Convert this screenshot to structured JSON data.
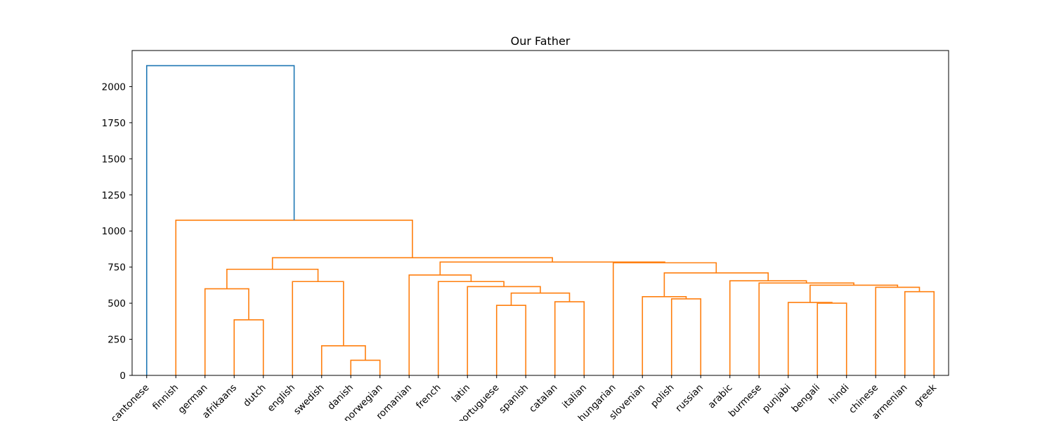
{
  "chart_data": {
    "type": "dendrogram",
    "title": "Our Father",
    "xlabel": "",
    "ylabel": "",
    "ylim": [
      0,
      2250
    ],
    "yticks": [
      0,
      250,
      500,
      750,
      1000,
      1250,
      1500,
      1750,
      2000
    ],
    "ytick_labels": [
      "0",
      "250",
      "500",
      "750",
      "1000",
      "1250",
      "1500",
      "1750",
      "2000"
    ],
    "grid": false,
    "leaves": [
      "cantonese",
      "finnish",
      "german",
      "afrikaans",
      "dutch",
      "english",
      "swedish",
      "danish",
      "norwegian",
      "romanian",
      "french",
      "latin",
      "portuguese",
      "spanish",
      "catalan",
      "italian",
      "hungarian",
      "slovenian",
      "polish",
      "russian",
      "arabic",
      "burmese",
      "punjabi",
      "bengali",
      "hindi",
      "chinese",
      "armenian",
      "greek"
    ],
    "colors": {
      "root_link": "#1f77b4",
      "cluster": "#ff7f0e"
    },
    "merges": [
      {
        "a": "leaf:7",
        "b": "leaf:8",
        "height": 105,
        "color": "cluster"
      },
      {
        "a": "leaf:6",
        "b": "m:0",
        "height": 205,
        "color": "cluster"
      },
      {
        "a": "leaf:3",
        "b": "leaf:4",
        "height": 385,
        "color": "cluster"
      },
      {
        "a": "leaf:12",
        "b": "leaf:13",
        "height": 485,
        "color": "cluster"
      },
      {
        "a": "leaf:23",
        "b": "leaf:24",
        "height": 500,
        "color": "cluster"
      },
      {
        "a": "leaf:22",
        "b": "m:4",
        "height": 505,
        "color": "cluster"
      },
      {
        "a": "leaf:14",
        "b": "leaf:15",
        "height": 510,
        "color": "cluster"
      },
      {
        "a": "leaf:18",
        "b": "leaf:19",
        "height": 530,
        "color": "cluster"
      },
      {
        "a": "leaf:17",
        "b": "m:7",
        "height": 545,
        "color": "cluster"
      },
      {
        "a": "m:3",
        "b": "m:6",
        "height": 570,
        "color": "cluster"
      },
      {
        "a": "leaf:26",
        "b": "leaf:27",
        "height": 580,
        "color": "cluster"
      },
      {
        "a": "leaf:2",
        "b": "m:2",
        "height": 600,
        "color": "cluster"
      },
      {
        "a": "leaf:25",
        "b": "m:10",
        "height": 610,
        "color": "cluster"
      },
      {
        "a": "leaf:11",
        "b": "m:9",
        "height": 615,
        "color": "cluster"
      },
      {
        "a": "m:5",
        "b": "m:12",
        "height": 625,
        "color": "cluster"
      },
      {
        "a": "leaf:21",
        "b": "m:14",
        "height": 640,
        "color": "cluster"
      },
      {
        "a": "leaf:10",
        "b": "m:13",
        "height": 650,
        "color": "cluster"
      },
      {
        "a": "leaf:5",
        "b": "m:1",
        "height": 650,
        "color": "cluster"
      },
      {
        "a": "leaf:20",
        "b": "m:15",
        "height": 655,
        "color": "cluster"
      },
      {
        "a": "leaf:9",
        "b": "m:16",
        "height": 695,
        "color": "cluster"
      },
      {
        "a": "m:8",
        "b": "m:18",
        "height": 710,
        "color": "cluster"
      },
      {
        "a": "m:11",
        "b": "m:17",
        "height": 735,
        "color": "cluster"
      },
      {
        "a": "leaf:16",
        "b": "m:20",
        "height": 780,
        "color": "cluster"
      },
      {
        "a": "m:19",
        "b": "m:22",
        "height": 785,
        "color": "cluster"
      },
      {
        "a": "m:21",
        "b": "m:23",
        "height": 815,
        "color": "cluster"
      },
      {
        "a": "leaf:1",
        "b": "m:24",
        "height": 1075,
        "color": "cluster"
      },
      {
        "a": "leaf:0",
        "b": "m:25",
        "height": 2145,
        "color": "root_link"
      }
    ]
  }
}
